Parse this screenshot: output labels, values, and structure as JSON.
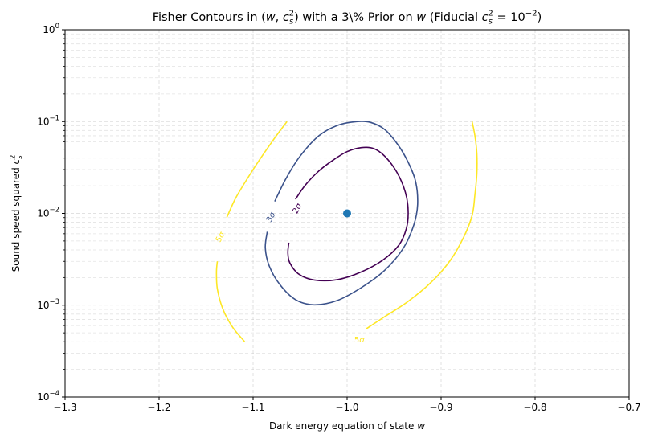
{
  "chart_data": {
    "type": "contour",
    "title": "Fisher Contours in (w, c_s²) with a 3\\% Prior on w (Fiducial c_s² = 10⁻²)",
    "xlabel": "Dark energy equation of state w",
    "ylabel": "Sound speed squared c_s²",
    "xlim": [
      -1.3,
      -0.7
    ],
    "ylim": [
      0.0001,
      1
    ],
    "yscale": "log",
    "grid": true,
    "x_ticks": [
      -1.3,
      -1.2,
      -1.1,
      -1.0,
      -0.9,
      -0.8,
      -0.7
    ],
    "x_tick_labels": [
      "−1.3",
      "−1.2",
      "−1.1",
      "−1.0",
      "−0.9",
      "−0.8",
      "−0.7"
    ],
    "y_ticks": [
      0.0001,
      0.001,
      0.01,
      0.1,
      1
    ],
    "y_tick_labels": [
      {
        "base": "10",
        "exp": "−4"
      },
      {
        "base": "10",
        "exp": "−3"
      },
      {
        "base": "10",
        "exp": "−2"
      },
      {
        "base": "10",
        "exp": "−1"
      },
      {
        "base": "10",
        "exp": "0"
      }
    ],
    "fiducial": {
      "w": -1.0,
      "cs2": 0.01,
      "color": "#1f77b4"
    },
    "contours": [
      {
        "level": "2σ",
        "color": "#440154",
        "path": [
          [
            -1.062,
            0.0048
          ],
          [
            -1.063,
            0.0037
          ],
          [
            -1.061,
            0.0029
          ],
          [
            -1.052,
            0.0022
          ],
          [
            -1.035,
            0.00188
          ],
          [
            -1.01,
            0.0019
          ],
          [
            -0.985,
            0.0023
          ],
          [
            -0.962,
            0.0031
          ],
          [
            -0.945,
            0.0045
          ],
          [
            -0.937,
            0.0068
          ],
          [
            -0.935,
            0.0105
          ],
          [
            -0.938,
            0.017
          ],
          [
            -0.947,
            0.028
          ],
          [
            -0.96,
            0.042
          ],
          [
            -0.972,
            0.051
          ],
          [
            -0.985,
            0.052
          ],
          [
            -1.0,
            0.047
          ],
          [
            -1.015,
            0.038
          ],
          [
            -1.03,
            0.029
          ],
          [
            -1.045,
            0.02
          ],
          [
            -1.055,
            0.0142
          ]
        ],
        "label_pos": [
          -1.053,
          0.0113
        ]
      },
      {
        "level": "3σ",
        "color": "#3b528b",
        "path": [
          [
            -1.085,
            0.0063
          ],
          [
            -1.087,
            0.0042
          ],
          [
            -1.083,
            0.0027
          ],
          [
            -1.072,
            0.0017
          ],
          [
            -1.055,
            0.00115
          ],
          [
            -1.035,
            0.00101
          ],
          [
            -1.01,
            0.00113
          ],
          [
            -0.985,
            0.00155
          ],
          [
            -0.96,
            0.0024
          ],
          [
            -0.94,
            0.0042
          ],
          [
            -0.929,
            0.0075
          ],
          [
            -0.925,
            0.0125
          ],
          [
            -0.927,
            0.022
          ],
          [
            -0.935,
            0.036
          ],
          [
            -0.946,
            0.056
          ],
          [
            -0.96,
            0.082
          ],
          [
            -0.975,
            0.098
          ],
          [
            -0.99,
            0.1
          ],
          [
            -1.01,
            0.091
          ],
          [
            -1.03,
            0.07
          ],
          [
            -1.05,
            0.042
          ],
          [
            -1.065,
            0.024
          ],
          [
            -1.077,
            0.0135
          ]
        ],
        "label_pos": [
          -1.081,
          0.0091
        ]
      },
      {
        "level": "5σ",
        "color": "#fde725",
        "path": [
          [
            -1.109,
            0.0004
          ],
          [
            -1.122,
            0.00058
          ],
          [
            -1.132,
            0.0009
          ],
          [
            -1.138,
            0.0015
          ],
          [
            -1.139,
            0.0023
          ],
          [
            -1.138,
            0.003
          ]
        ],
        "label_pos": [
          -1.135,
          0.0055
        ]
      },
      {
        "level": "5σ",
        "color": "#fde725",
        "path": [
          [
            -1.128,
            0.009
          ],
          [
            -1.118,
            0.015
          ],
          [
            -1.1,
            0.03
          ],
          [
            -1.08,
            0.06
          ],
          [
            -1.064,
            0.1
          ]
        ],
        "label_pos": null
      },
      {
        "level": "5σ",
        "color": "#fde725",
        "path": [
          [
            -0.98,
            0.00055
          ],
          [
            -0.96,
            0.00075
          ],
          [
            -0.935,
            0.0011
          ],
          [
            -0.91,
            0.0018
          ],
          [
            -0.89,
            0.0031
          ],
          [
            -0.876,
            0.0055
          ],
          [
            -0.867,
            0.0095
          ],
          [
            -0.864,
            0.016
          ],
          [
            -0.862,
            0.027
          ],
          [
            -0.862,
            0.045
          ],
          [
            -0.864,
            0.07
          ],
          [
            -0.867,
            0.1
          ]
        ],
        "label_pos": [
          -0.987,
          0.00042
        ]
      }
    ]
  }
}
